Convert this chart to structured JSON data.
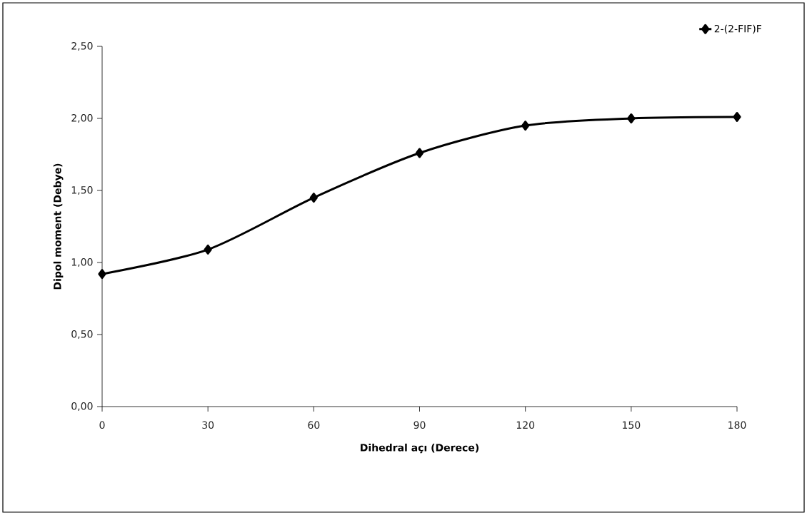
{
  "chart_data": {
    "type": "line",
    "xlabel": "Dihedral açı (Derece)",
    "ylabel": "Dipol moment (Debye)",
    "x": [
      0,
      30,
      60,
      90,
      120,
      150,
      180
    ],
    "series": [
      {
        "name": "2-(2-FIF)F",
        "color": "#000000",
        "values": [
          0.92,
          1.09,
          1.45,
          1.76,
          1.95,
          2.0,
          2.01
        ]
      }
    ],
    "xlim": [
      0,
      180
    ],
    "xticks": [
      0,
      30,
      60,
      90,
      120,
      150,
      180
    ],
    "ylim": [
      0,
      2.5
    ],
    "yticks": [
      {
        "value": 0,
        "label": "0,00"
      },
      {
        "value": 0.5,
        "label": "0,50"
      },
      {
        "value": 1,
        "label": "1,00"
      },
      {
        "value": 1.5,
        "label": "1,50"
      },
      {
        "value": 2,
        "label": "2,00"
      },
      {
        "value": 2.5,
        "label": "2,50"
      }
    ],
    "grid": false,
    "legend": "top right",
    "marker": "diamond",
    "line_style": "solid"
  }
}
